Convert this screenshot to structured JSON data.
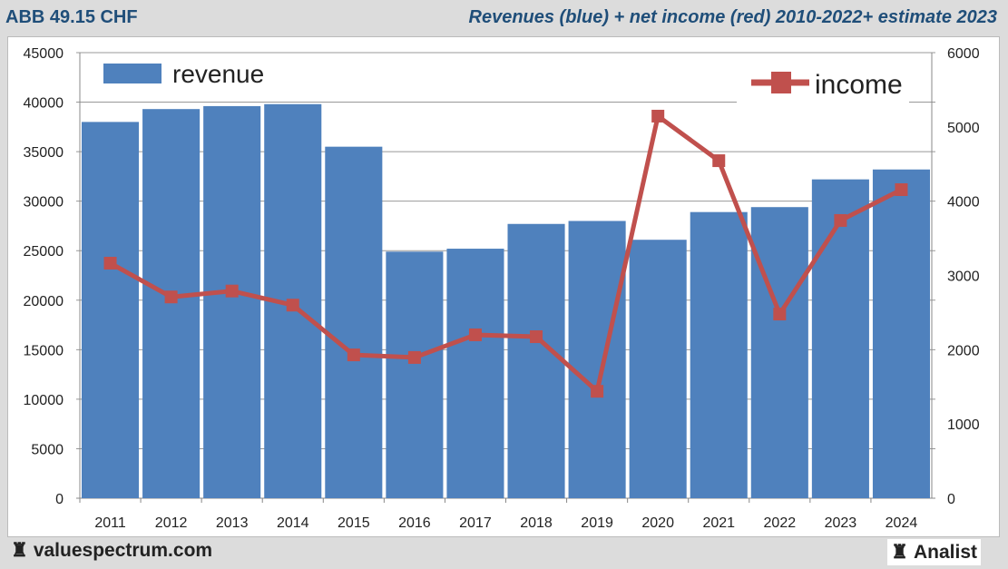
{
  "header": {
    "left": "ABB 49.15 CHF",
    "right": "Revenues (blue) + net income (red) 2010-2022+ estimate 2023"
  },
  "footer": {
    "left": "valuespectrum.com",
    "right": "Analist"
  },
  "chart_data": {
    "type": "bar+line",
    "categories": [
      "2011",
      "2012",
      "2013",
      "2014",
      "2015",
      "2016",
      "2017",
      "2018",
      "2019",
      "2020",
      "2021",
      "2022",
      "2023",
      "2024"
    ],
    "series": [
      {
        "name": "revenue",
        "type": "bar",
        "axis": "left",
        "color": "#4f81bd",
        "values": [
          38000,
          39300,
          39600,
          39800,
          35500,
          24900,
          25200,
          27700,
          28000,
          26100,
          28900,
          29400,
          32200,
          33200
        ]
      },
      {
        "name": "income",
        "type": "line",
        "axis": "right",
        "color": "#c0504d",
        "values": [
          3165,
          2710,
          2790,
          2600,
          1930,
          1895,
          2200,
          2175,
          1440,
          5145,
          4545,
          2480,
          3740,
          4155
        ]
      }
    ],
    "left_axis": {
      "min": 0,
      "max": 45000,
      "ticks": [
        "0",
        "5000",
        "10000",
        "15000",
        "20000",
        "25000",
        "30000",
        "35000",
        "40000",
        "45000"
      ]
    },
    "right_axis": {
      "min": 0,
      "max": 6000,
      "ticks": [
        "0",
        "1000",
        "2000",
        "3000",
        "4000",
        "5000",
        "6000"
      ]
    },
    "grid": true,
    "legend": [
      "revenue",
      "income"
    ]
  }
}
